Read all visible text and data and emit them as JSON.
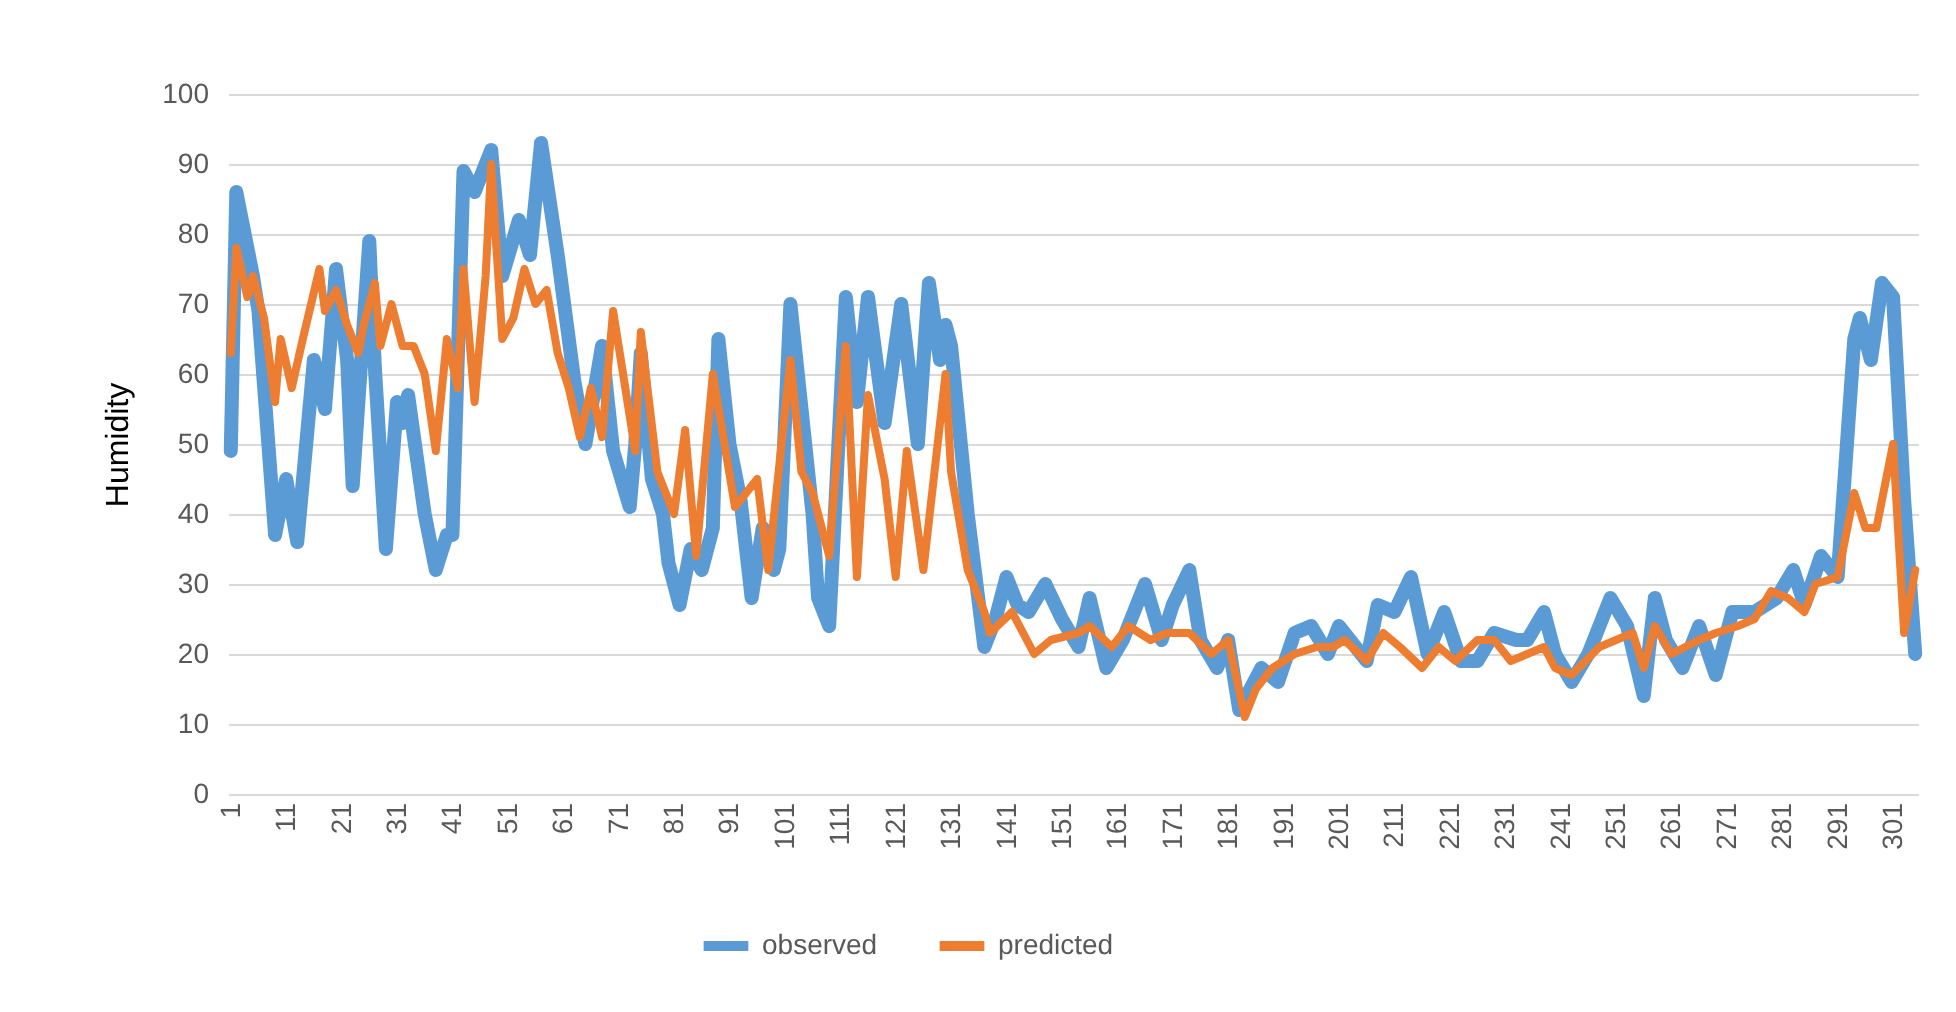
{
  "chart_data": {
    "type": "line",
    "ylabel": "Humidity",
    "xlim": [
      0.5,
      305.5
    ],
    "xticks": [
      1,
      11,
      21,
      31,
      41,
      51,
      61,
      71,
      81,
      91,
      101,
      111,
      121,
      131,
      141,
      151,
      161,
      171,
      181,
      191,
      201,
      211,
      221,
      231,
      241,
      251,
      261,
      271,
      281,
      291,
      301
    ],
    "ylim": [
      0,
      100
    ],
    "yticks": [
      0,
      10,
      20,
      30,
      40,
      50,
      60,
      70,
      80,
      90,
      100
    ],
    "grid": "y",
    "legend": "bottom",
    "marker": "none",
    "line_style": "solid",
    "series": [
      {
        "name": "observed",
        "color": "#5b9bd5",
        "x": [
          1,
          2,
          5,
          6,
          9,
          11,
          13,
          16,
          18,
          20,
          22,
          23,
          26,
          27,
          29,
          31,
          32,
          33,
          36,
          38,
          40,
          41,
          43,
          45,
          48,
          50,
          53,
          55,
          57,
          60,
          63,
          65,
          68,
          70,
          73,
          74,
          75,
          77,
          79,
          80,
          82,
          84,
          86,
          88,
          89,
          91,
          93,
          95,
          97,
          99,
          100,
          102,
          104,
          106,
          107,
          109,
          112,
          114,
          116,
          119,
          122,
          125,
          127,
          129,
          130,
          131,
          134,
          137,
          139,
          141,
          143,
          145,
          148,
          151,
          154,
          156,
          159,
          162,
          166,
          169,
          171,
          174,
          176,
          179,
          181,
          183,
          187,
          190,
          193,
          196,
          199,
          201,
          206,
          208,
          211,
          214,
          217,
          220,
          223,
          226,
          229,
          233,
          235,
          238,
          240,
          243,
          246,
          250,
          253,
          256,
          258,
          260,
          263,
          266,
          269,
          272,
          276,
          280,
          283,
          285,
          288,
          291,
          294,
          295,
          297,
          299,
          301,
          303,
          305
        ],
        "values": [
          49,
          86,
          74,
          69,
          37,
          45,
          36,
          62,
          55,
          75,
          62,
          44,
          79,
          61,
          35,
          56,
          53,
          57,
          40,
          32,
          37,
          37,
          89,
          86,
          92,
          74,
          82,
          77,
          93,
          77,
          59,
          50,
          64,
          49,
          41,
          50,
          63,
          45,
          40,
          33,
          27,
          35,
          32,
          38,
          65,
          50,
          42,
          28,
          38,
          32,
          35,
          70,
          55,
          40,
          28,
          24,
          71,
          56,
          71,
          53,
          70,
          50,
          73,
          62,
          67,
          64,
          40,
          21,
          25,
          31,
          27,
          26,
          30,
          25,
          21,
          28,
          18,
          22,
          30,
          22,
          27,
          32,
          22,
          18,
          22,
          12,
          18,
          16,
          23,
          24,
          20,
          24,
          19,
          27,
          26,
          31,
          20,
          26,
          19,
          19,
          23,
          22,
          22,
          26,
          20,
          16,
          20,
          28,
          24,
          14,
          28,
          22,
          18,
          24,
          17,
          26,
          26,
          28,
          32,
          27,
          34,
          31,
          65,
          68,
          62,
          73,
          71,
          42,
          20
        ]
      },
      {
        "name": "predicted",
        "color": "#ed7d31",
        "x": [
          1,
          2,
          4,
          5,
          7,
          9,
          10,
          12,
          14,
          17,
          18,
          20,
          22,
          24,
          25,
          27,
          28,
          30,
          32,
          34,
          36,
          38,
          40,
          42,
          43,
          45,
          47,
          48,
          50,
          52,
          54,
          56,
          58,
          60,
          62,
          64,
          66,
          68,
          70,
          72,
          74,
          75,
          78,
          81,
          83,
          85,
          88,
          92,
          96,
          98,
          102,
          104,
          106,
          109,
          112,
          114,
          116,
          119,
          121,
          123,
          126,
          130,
          131,
          134,
          137,
          138,
          142,
          146,
          149,
          154,
          156,
          160,
          163,
          167,
          170,
          174,
          178,
          181,
          184,
          186,
          189,
          193,
          197,
          200,
          202,
          206,
          209,
          212,
          216,
          219,
          222,
          226,
          229,
          232,
          235,
          238,
          240,
          243,
          248,
          251,
          254,
          256,
          258,
          261,
          266,
          269,
          273,
          276,
          279,
          282,
          285,
          287,
          291,
          294,
          296,
          298,
          301,
          303,
          305
        ],
        "values": [
          63,
          78,
          71,
          74,
          68,
          56,
          65,
          58,
          65,
          75,
          69,
          72,
          67,
          63,
          67,
          73,
          64,
          70,
          64,
          64,
          60,
          49,
          65,
          58,
          75,
          56,
          74,
          90,
          65,
          68,
          75,
          70,
          72,
          63,
          58,
          51,
          58,
          51,
          69,
          59,
          49,
          66,
          46,
          40,
          52,
          34,
          60,
          41,
          45,
          32,
          62,
          46,
          43,
          34,
          64,
          31,
          57,
          45,
          31,
          49,
          32,
          60,
          46,
          32,
          26,
          23,
          26,
          20,
          22,
          23,
          24,
          21,
          24,
          22,
          23,
          23,
          20,
          22,
          11,
          15,
          18,
          20,
          21,
          21,
          22,
          19,
          23,
          21,
          18,
          21,
          19,
          22,
          22,
          19,
          20,
          21,
          18,
          17,
          21,
          22,
          23,
          18,
          24,
          20,
          22,
          23,
          24,
          25,
          29,
          28,
          26,
          30,
          31,
          43,
          38,
          38,
          50,
          23,
          32
        ]
      }
    ]
  }
}
